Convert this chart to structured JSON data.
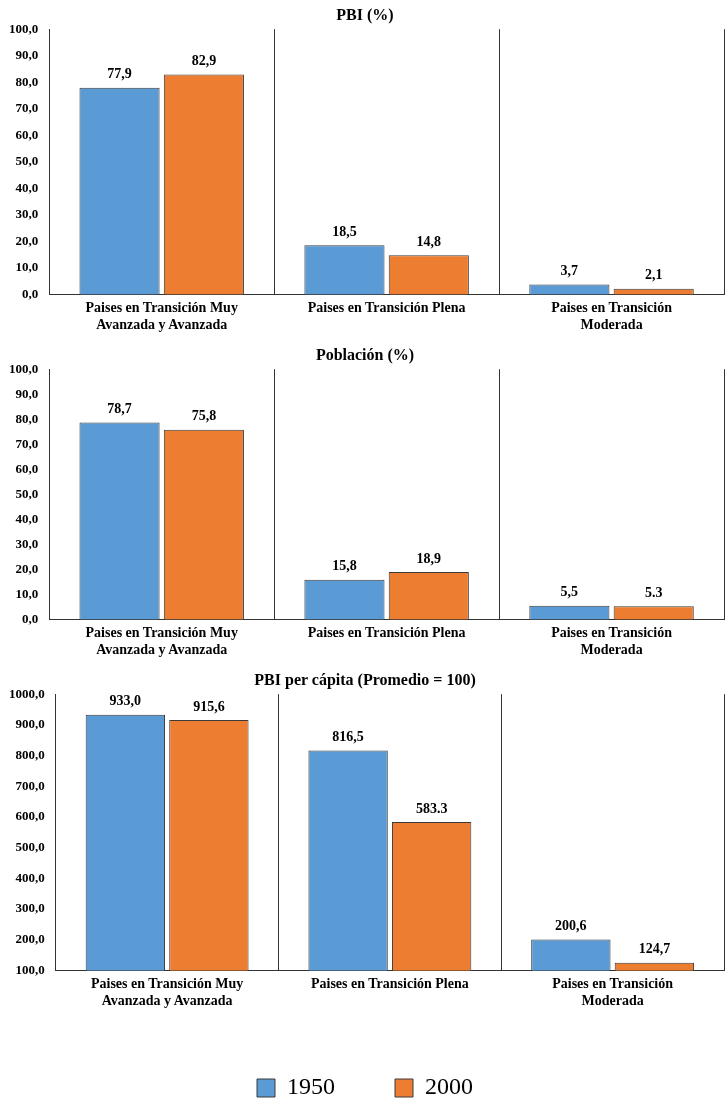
{
  "chart_data": [
    {
      "type": "bar",
      "title": "PBI (%)",
      "categories": [
        "Paises en Transición Muy Avanzada y Avanzada",
        "Paises en Transición Plena",
        "Paises en Transición Moderada"
      ],
      "series": [
        {
          "color": "#5b9bd5",
          "values": [
            77.9,
            18.5,
            3.7
          ],
          "value_labels": [
            "77,9",
            "18,5",
            "3,7"
          ]
        },
        {
          "color": "#ed7d31",
          "values": [
            82.9,
            14.8,
            2.1
          ],
          "value_labels": [
            "82,9",
            "14,8",
            "2,1"
          ]
        }
      ],
      "ylim": [
        0,
        100
      ],
      "yticks": [
        {
          "value": 0,
          "label": "0,0"
        },
        {
          "value": 10,
          "label": "10,0"
        },
        {
          "value": 20,
          "label": "20,0"
        },
        {
          "value": 30,
          "label": "30,0"
        },
        {
          "value": 40,
          "label": "40,0"
        },
        {
          "value": 50,
          "label": "50,0"
        },
        {
          "value": 60,
          "label": "60,0"
        },
        {
          "value": 70,
          "label": "70,0"
        },
        {
          "value": 80,
          "label": "80,0"
        },
        {
          "value": 90,
          "label": "90,0"
        },
        {
          "value": 100,
          "label": "100,0"
        }
      ],
      "grid": "x",
      "legend": false
    },
    {
      "type": "bar",
      "title": "Población (%)",
      "categories": [
        "Paises en Transición Muy Avanzada y Avanzada",
        "Paises en Transición Plena",
        "Paises en Transición Moderada"
      ],
      "series": [
        {
          "color": "#5b9bd5",
          "values": [
            78.7,
            15.8,
            5.5
          ],
          "value_labels": [
            "78,7",
            "15,8",
            "5,5"
          ]
        },
        {
          "color": "#ed7d31",
          "values": [
            75.8,
            18.9,
            5.3
          ],
          "value_labels": [
            "75,8",
            "18,9",
            "5.3"
          ]
        }
      ],
      "ylim": [
        0,
        100
      ],
      "yticks": [
        {
          "value": 0,
          "label": "0,0"
        },
        {
          "value": 10,
          "label": "10,0"
        },
        {
          "value": 20,
          "label": "20,0"
        },
        {
          "value": 30,
          "label": "30,0"
        },
        {
          "value": 40,
          "label": "40,0"
        },
        {
          "value": 50,
          "label": "50,0"
        },
        {
          "value": 60,
          "label": "60,0"
        },
        {
          "value": 70,
          "label": "70,0"
        },
        {
          "value": 80,
          "label": "80,0"
        },
        {
          "value": 90,
          "label": "90,0"
        },
        {
          "value": 100,
          "label": "100,0"
        }
      ],
      "grid": "x",
      "legend": false
    },
    {
      "type": "bar",
      "title": "PBI per cápita (Promedio = 100)",
      "categories": [
        "Paises en Transición Muy Avanzada y Avanzada",
        "Paises en Transición Plena",
        "Paises en Transición Moderada"
      ],
      "series": [
        {
          "name": "1950",
          "color": "#5b9bd5",
          "values": [
            933.0,
            816.5,
            200.6
          ],
          "value_labels": [
            "933,0",
            "816,5",
            "200,6"
          ]
        },
        {
          "name": "2000",
          "color": "#ed7d31",
          "values": [
            915.6,
            583.3,
            124.7
          ],
          "value_labels": [
            "915,6",
            "583.3",
            "124,7"
          ]
        }
      ],
      "ylim": [
        100,
        1000
      ],
      "yticks": [
        {
          "value": 100,
          "label": "100,0"
        },
        {
          "value": 200,
          "label": "200,0"
        },
        {
          "value": 300,
          "label": "300,0"
        },
        {
          "value": 400,
          "label": "400,0"
        },
        {
          "value": 500,
          "label": "500,0"
        },
        {
          "value": 600,
          "label": "600,0"
        },
        {
          "value": 700,
          "label": "700,0"
        },
        {
          "value": 800,
          "label": "800,0"
        },
        {
          "value": 900,
          "label": "900,0"
        },
        {
          "value": 1000,
          "label": "1000,0"
        }
      ],
      "grid": "x",
      "legend": "bottom"
    }
  ]
}
